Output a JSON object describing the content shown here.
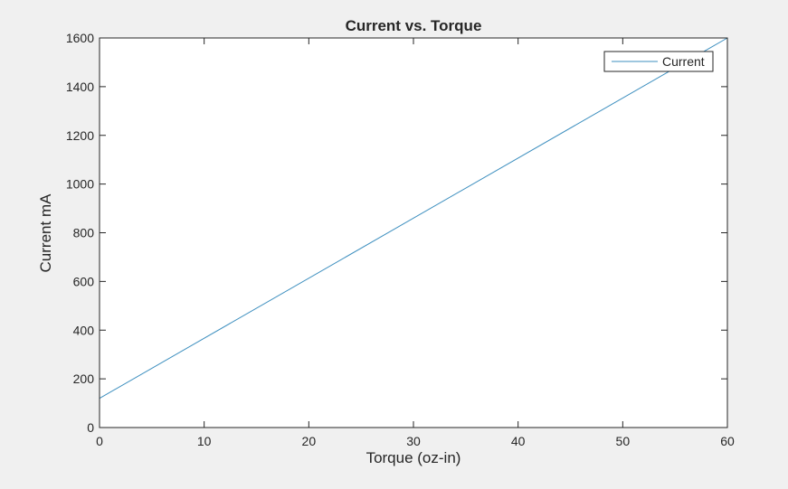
{
  "chart_data": {
    "type": "line",
    "title": "Current vs. Torque",
    "xlabel": "Torque (oz-in)",
    "ylabel": "Current mA",
    "xlim": [
      0,
      60
    ],
    "ylim": [
      0,
      1600
    ],
    "xticks": [
      0,
      10,
      20,
      30,
      40,
      50,
      60
    ],
    "yticks": [
      0,
      200,
      400,
      600,
      800,
      1000,
      1200,
      1400,
      1600
    ],
    "xtick_labels": [
      "0",
      "10",
      "20",
      "30",
      "40",
      "50",
      "60"
    ],
    "ytick_labels": [
      "0",
      "200",
      "400",
      "600",
      "800",
      "1000",
      "1200",
      "1400",
      "1600"
    ],
    "grid": false,
    "legend_position": "top-right",
    "series": [
      {
        "name": "Current",
        "color": "#3d8fbf",
        "x": [
          0,
          60
        ],
        "y": [
          120,
          1600
        ]
      }
    ]
  }
}
